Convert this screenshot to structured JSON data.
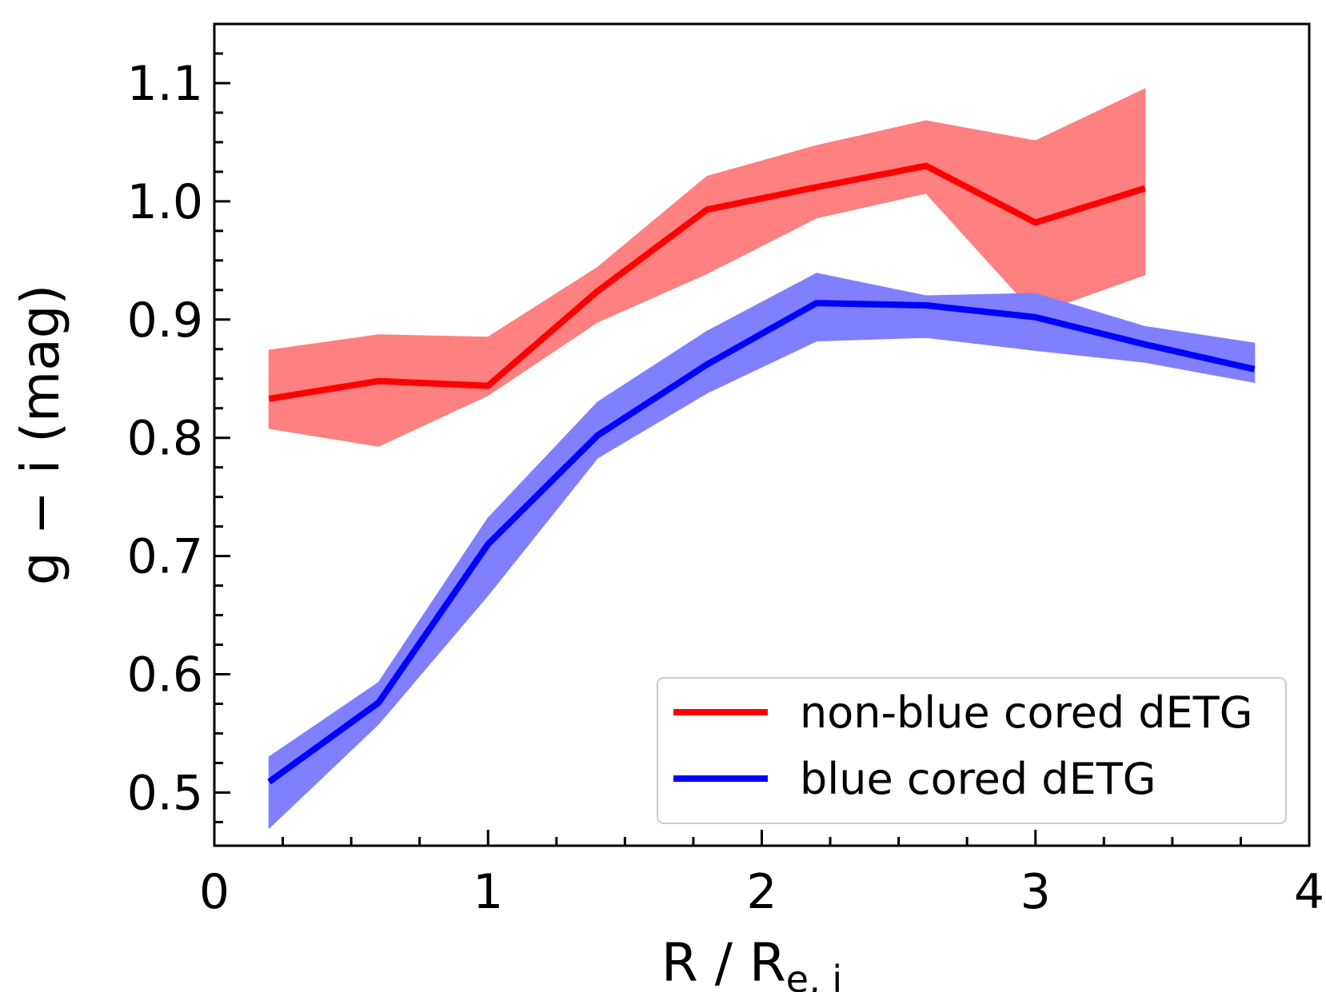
{
  "chart_data": {
    "type": "line",
    "title": "",
    "xlabel": "R / R",
    "xlabel_sub": "e, i",
    "ylabel": "g − i  (mag)",
    "xlim": [
      0,
      4
    ],
    "ylim": [
      0.455,
      1.15
    ],
    "x_ticks": [
      0,
      1,
      2,
      3,
      4
    ],
    "x_tick_labels": [
      "0",
      "1",
      "2",
      "3",
      "4"
    ],
    "y_ticks": [
      0.5,
      0.6,
      0.7,
      0.8,
      0.9,
      1.0,
      1.1
    ],
    "y_tick_labels": [
      "0.5",
      "0.6",
      "0.7",
      "0.8",
      "0.9",
      "1.0",
      "1.1"
    ],
    "grid": false,
    "legend_position": "lower-right",
    "series": [
      {
        "name": "non-blue cored dETG",
        "color": "#ff0000",
        "band_color": "#ff8080",
        "x": [
          0.2,
          0.6,
          1.0,
          1.4,
          1.8,
          2.2,
          2.6,
          3.0,
          3.4
        ],
        "y": [
          0.833,
          0.848,
          0.844,
          0.924,
          0.993,
          1.012,
          1.03,
          0.982,
          1.011
        ],
        "y_upper": [
          0.874,
          0.887,
          0.885,
          0.944,
          1.021,
          1.047,
          1.068,
          1.051,
          1.095
        ],
        "y_lower": [
          0.808,
          0.793,
          0.836,
          0.898,
          0.939,
          0.986,
          1.007,
          0.905,
          0.938
        ]
      },
      {
        "name": "blue cored dETG",
        "color": "#0000ff",
        "band_color": "#8080ff",
        "x": [
          0.2,
          0.6,
          1.0,
          1.4,
          1.8,
          2.2,
          2.6,
          3.0,
          3.4,
          3.8
        ],
        "y": [
          0.509,
          0.576,
          0.71,
          0.802,
          0.862,
          0.914,
          0.912,
          0.902,
          0.879,
          0.858
        ],
        "y_upper": [
          0.53,
          0.593,
          0.732,
          0.83,
          0.89,
          0.939,
          0.92,
          0.922,
          0.894,
          0.88
        ],
        "y_lower": [
          0.47,
          0.558,
          0.667,
          0.783,
          0.838,
          0.882,
          0.885,
          0.874,
          0.864,
          0.847
        ]
      }
    ]
  }
}
